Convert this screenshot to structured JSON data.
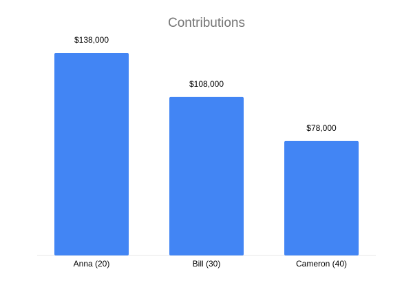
{
  "chart_data": {
    "type": "bar",
    "title": "Contributions",
    "xlabel": "",
    "ylabel": "",
    "categories": [
      "Anna (20)",
      "Bill (30)",
      "Cameron (40)"
    ],
    "values": [
      138000,
      108000,
      78000
    ],
    "data_labels": [
      "$138,000",
      "$108,000",
      "$78,000"
    ],
    "ylim": [
      0,
      138000
    ],
    "grid": false,
    "legend": "none",
    "bar_color": "#4285f4"
  }
}
